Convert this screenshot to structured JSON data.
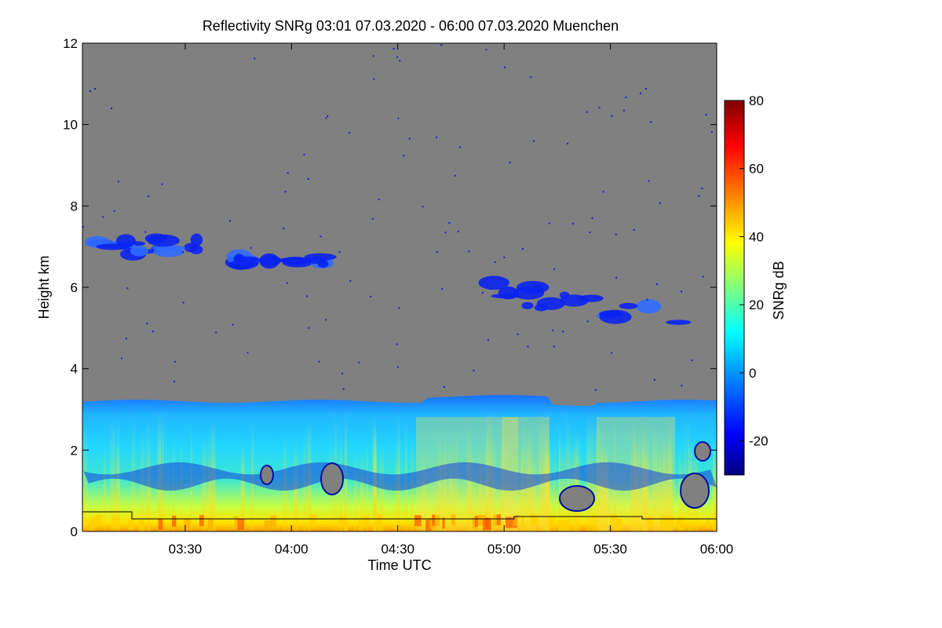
{
  "chart_data": {
    "type": "heatmap",
    "title": "Reflectivity SNRg   03:01 07.03.2020 - 06:00 07.03.2020 Muenchen",
    "xlabel": "Time UTC",
    "ylabel": "Height km",
    "xlim": [
      "03:01",
      "06:00"
    ],
    "ylim": [
      0,
      12
    ],
    "x_ticks": [
      "03:30",
      "04:00",
      "04:30",
      "05:00",
      "05:30",
      "06:00"
    ],
    "y_ticks": [
      0,
      2,
      4,
      6,
      8,
      10,
      12
    ],
    "colorbar": {
      "label": "SNRg dB",
      "range": [
        -30,
        80
      ],
      "ticks": [
        -20,
        0,
        20,
        40,
        60,
        80
      ]
    },
    "background_color": "#808080",
    "colormap": [
      "#00007f",
      "#0000ff",
      "#007fff",
      "#00ffff",
      "#7fff7f",
      "#ffff00",
      "#ff7f00",
      "#ff0000",
      "#7f0000"
    ],
    "features": {
      "boundary_layer_top_km": 3.2,
      "upper_cloud_layers": [
        {
          "time_start": "03:05",
          "time_end": "03:35",
          "base_km": 6.5,
          "top_km": 7.5,
          "snr_db": -15
        },
        {
          "time_start": "03:45",
          "time_end": "04:10",
          "base_km": 6.4,
          "top_km": 6.9,
          "snr_db": -15
        },
        {
          "time_start": "04:55",
          "time_end": "05:50",
          "base_km": 5.3,
          "top_km": 6.6,
          "snr_db": -17
        }
      ]
    }
  }
}
